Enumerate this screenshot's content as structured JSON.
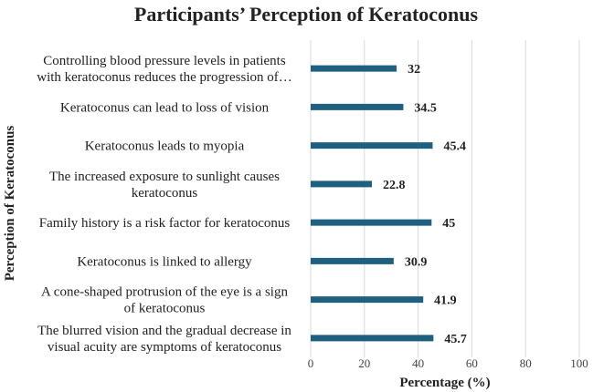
{
  "chart_data": {
    "type": "bar",
    "orientation": "horizontal",
    "title": "Participants’ Perception of Keratoconus",
    "xlabel": "Percentage (%)",
    "ylabel": "Perception of Keratoconus",
    "xlim": [
      0,
      100
    ],
    "x_ticks": [
      "0",
      "20",
      "40",
      "60",
      "80",
      "100"
    ],
    "grid": "vertical",
    "bar_color": "#1f5f7f",
    "categories": [
      [
        "Controlling blood pressure levels in patients",
        "with keratoconus reduces the progression of…"
      ],
      [
        "Keratoconus can lead to loss of vision"
      ],
      [
        "Keratoconus leads to myopia"
      ],
      [
        "The increased exposure to sunlight causes",
        "keratoconus"
      ],
      [
        "Family history is a risk factor for keratoconus"
      ],
      [
        "Keratoconus is linked to allergy"
      ],
      [
        "A cone-shaped protrusion of the eye is a sign",
        "of keratoconus"
      ],
      [
        "The blurred vision and the gradual decrease in",
        "visual acuity are symptoms of keratoconus"
      ]
    ],
    "values": [
      32,
      34.5,
      45.4,
      22.8,
      45,
      30.9,
      41.9,
      45.7
    ],
    "data_labels": [
      "32",
      "34.5",
      "45.4",
      "22.8",
      "45",
      "30.9",
      "41.9",
      "45.7"
    ]
  }
}
